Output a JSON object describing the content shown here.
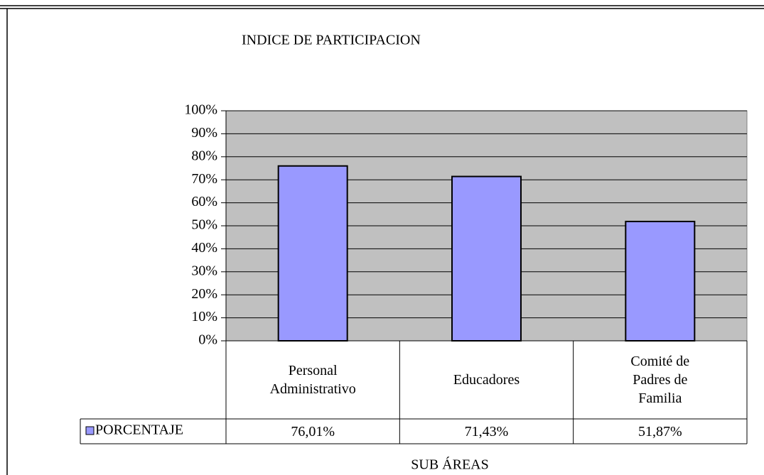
{
  "chart_data": {
    "type": "bar",
    "title": "INDICE DE PARTICIPACION",
    "x_label": "SUB ÁREAS",
    "categories": [
      "Personal Administrativo",
      "Educadores",
      "Comité de Padres de Familia"
    ],
    "series": [
      {
        "name": "PORCENTAJE",
        "color": "#9999ff",
        "values": [
          76.01,
          71.43,
          51.87
        ],
        "value_labels": [
          "76,01%",
          "71,43%",
          "51,87%"
        ]
      }
    ],
    "ylim": [
      0,
      100
    ],
    "yticks": [
      {
        "value": 0,
        "label": "0%"
      },
      {
        "value": 10,
        "label": "10%"
      },
      {
        "value": 20,
        "label": "20%"
      },
      {
        "value": 30,
        "label": "30%"
      },
      {
        "value": 40,
        "label": "40%"
      },
      {
        "value": 50,
        "label": "50%"
      },
      {
        "value": 60,
        "label": "60%"
      },
      {
        "value": 70,
        "label": "70%"
      },
      {
        "value": 80,
        "label": "80%"
      },
      {
        "value": 90,
        "label": "90%"
      },
      {
        "value": 100,
        "label": "100%"
      }
    ],
    "grid": true,
    "data_table": true,
    "plot_background": "#c0c0c0"
  }
}
